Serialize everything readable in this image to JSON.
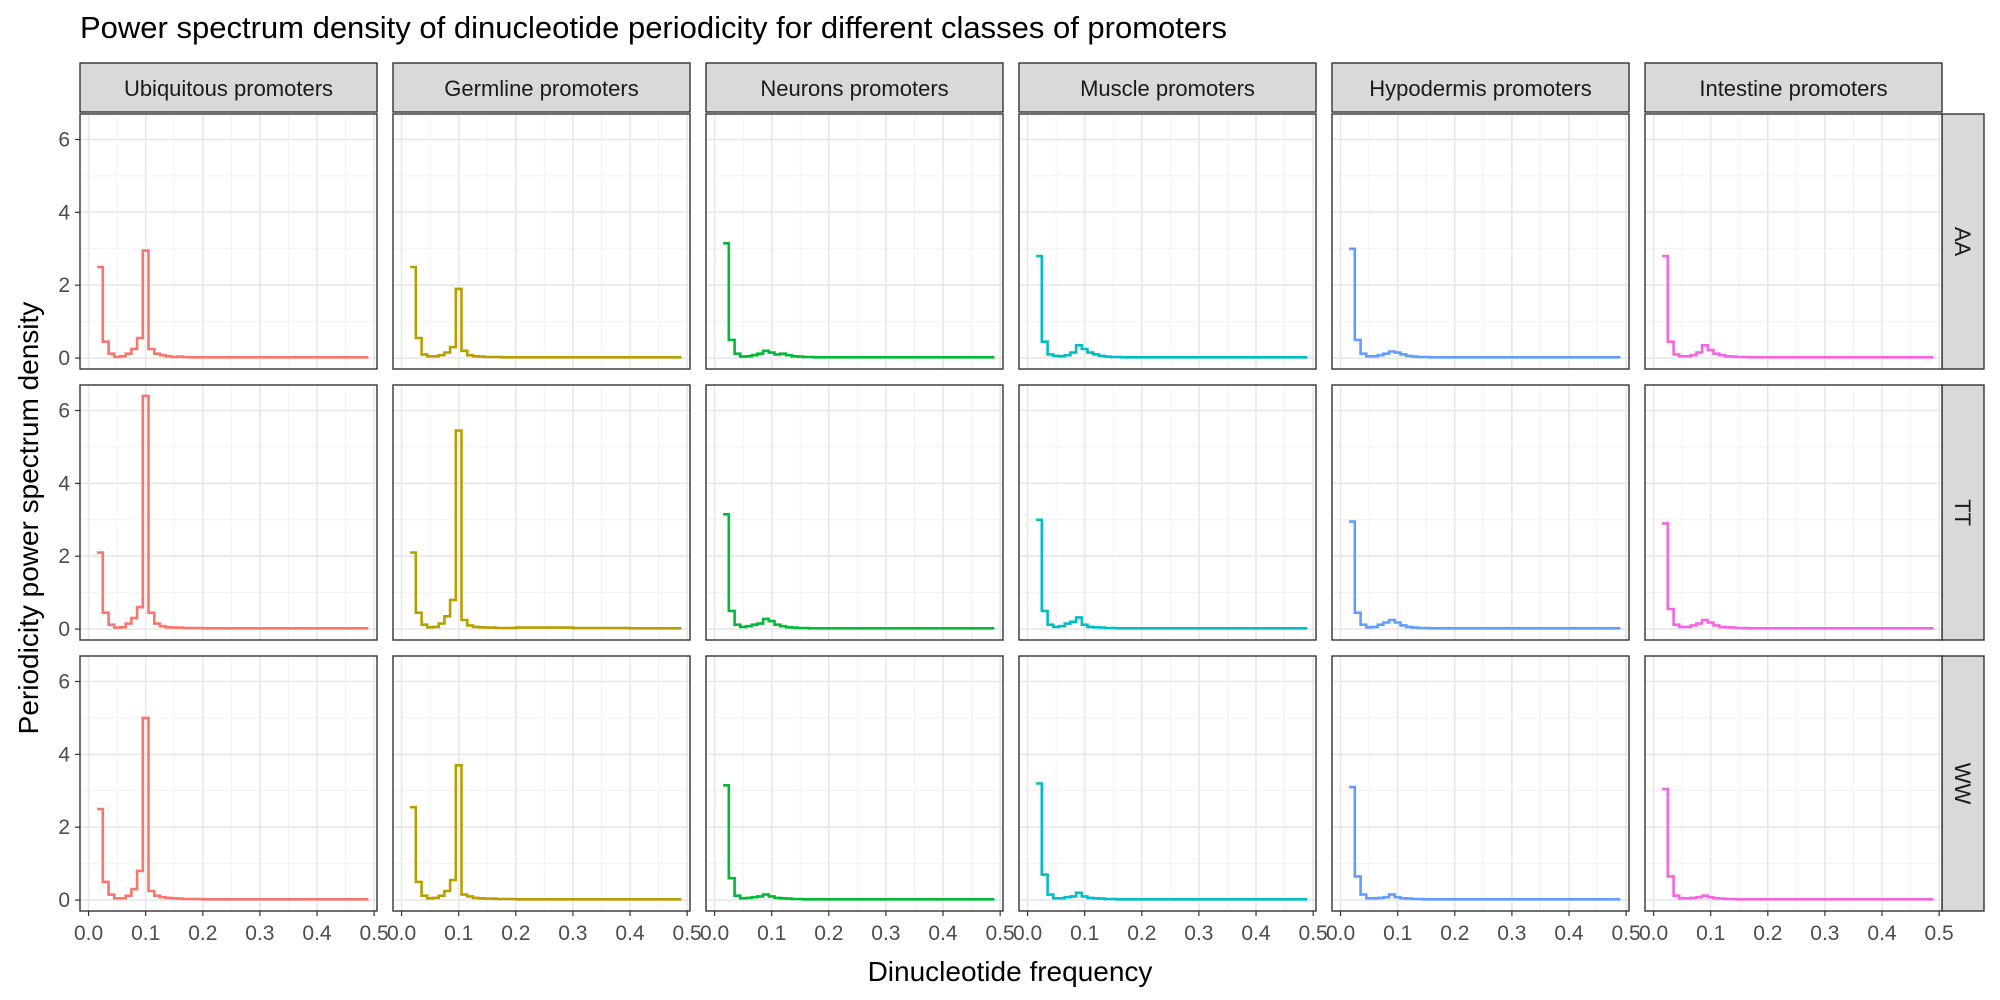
{
  "chart_data": {
    "type": "line",
    "title": "Power spectrum density of dinucleotide periodicity for different classes of promoters",
    "xlabel": "Dinucleotide frequency",
    "ylabel": "Periodicity power spectrum density",
    "columns": [
      "Ubiquitous promoters",
      "Germline promoters",
      "Neurons promoters",
      "Muscle promoters",
      "Hypodermis promoters",
      "Intestine promoters"
    ],
    "rows": [
      "AA",
      "TT",
      "WW"
    ],
    "xlim": [
      -0.015,
      0.505
    ],
    "ylim": [
      -0.3,
      6.7
    ],
    "x_ticks": [
      0.0,
      0.1,
      0.2,
      0.3,
      0.4,
      0.5
    ],
    "x_tick_labels": [
      "0.0",
      "0.1",
      "0.2",
      "0.3",
      "0.4",
      "0.5"
    ],
    "y_ticks": [
      0,
      2,
      4,
      6
    ],
    "y_tick_labels": [
      "0",
      "2",
      "4",
      "6"
    ],
    "grid": true,
    "step": true,
    "colors": [
      "#F8766D",
      "#B79F00",
      "#00BA38",
      "#00BFC4",
      "#619CFF",
      "#F564E3"
    ],
    "panels": [
      [
        {
          "x": [
            0.015,
            0.025,
            0.035,
            0.045,
            0.055,
            0.065,
            0.075,
            0.085,
            0.095,
            0.105,
            0.115,
            0.125,
            0.135,
            0.145,
            0.155,
            0.165,
            0.175,
            0.2,
            0.3,
            0.4,
            0.49
          ],
          "y": [
            2.5,
            0.45,
            0.12,
            0.03,
            0.05,
            0.12,
            0.25,
            0.55,
            2.95,
            0.25,
            0.12,
            0.08,
            0.05,
            0.03,
            0.04,
            0.03,
            0.02,
            0.02,
            0.02,
            0.02,
            0.02
          ]
        },
        {
          "x": [
            0.015,
            0.025,
            0.035,
            0.045,
            0.055,
            0.065,
            0.075,
            0.085,
            0.095,
            0.105,
            0.115,
            0.125,
            0.135,
            0.145,
            0.155,
            0.165,
            0.175,
            0.2,
            0.3,
            0.4,
            0.49
          ],
          "y": [
            2.5,
            0.55,
            0.1,
            0.05,
            0.05,
            0.08,
            0.15,
            0.3,
            1.9,
            0.2,
            0.08,
            0.05,
            0.04,
            0.03,
            0.03,
            0.03,
            0.02,
            0.02,
            0.02,
            0.02,
            0.02
          ]
        },
        {
          "x": [
            0.015,
            0.025,
            0.035,
            0.045,
            0.055,
            0.065,
            0.075,
            0.085,
            0.095,
            0.105,
            0.115,
            0.125,
            0.135,
            0.145,
            0.155,
            0.165,
            0.175,
            0.2,
            0.3,
            0.4,
            0.49
          ],
          "y": [
            3.15,
            0.5,
            0.12,
            0.04,
            0.05,
            0.08,
            0.12,
            0.2,
            0.15,
            0.1,
            0.12,
            0.08,
            0.05,
            0.04,
            0.03,
            0.03,
            0.02,
            0.02,
            0.02,
            0.02,
            0.02
          ]
        },
        {
          "x": [
            0.015,
            0.025,
            0.035,
            0.045,
            0.055,
            0.065,
            0.075,
            0.085,
            0.095,
            0.105,
            0.115,
            0.125,
            0.135,
            0.145,
            0.155,
            0.165,
            0.175,
            0.2,
            0.3,
            0.4,
            0.49
          ],
          "y": [
            2.8,
            0.45,
            0.1,
            0.06,
            0.05,
            0.08,
            0.15,
            0.35,
            0.25,
            0.15,
            0.1,
            0.06,
            0.04,
            0.03,
            0.03,
            0.02,
            0.02,
            0.02,
            0.02,
            0.02,
            0.02
          ]
        },
        {
          "x": [
            0.015,
            0.025,
            0.035,
            0.045,
            0.055,
            0.065,
            0.075,
            0.085,
            0.095,
            0.105,
            0.115,
            0.125,
            0.135,
            0.145,
            0.155,
            0.165,
            0.175,
            0.2,
            0.3,
            0.4,
            0.49
          ],
          "y": [
            3.0,
            0.5,
            0.12,
            0.05,
            0.05,
            0.08,
            0.12,
            0.18,
            0.15,
            0.1,
            0.06,
            0.04,
            0.03,
            0.03,
            0.02,
            0.02,
            0.02,
            0.02,
            0.02,
            0.02,
            0.02
          ]
        },
        {
          "x": [
            0.015,
            0.025,
            0.035,
            0.045,
            0.055,
            0.065,
            0.075,
            0.085,
            0.095,
            0.105,
            0.115,
            0.125,
            0.135,
            0.145,
            0.155,
            0.165,
            0.175,
            0.2,
            0.3,
            0.4,
            0.49
          ],
          "y": [
            2.8,
            0.45,
            0.1,
            0.05,
            0.05,
            0.08,
            0.15,
            0.35,
            0.22,
            0.12,
            0.08,
            0.05,
            0.04,
            0.03,
            0.03,
            0.02,
            0.02,
            0.02,
            0.02,
            0.02,
            0.02
          ]
        }
      ],
      [
        {
          "x": [
            0.015,
            0.025,
            0.035,
            0.045,
            0.055,
            0.065,
            0.075,
            0.085,
            0.095,
            0.105,
            0.115,
            0.125,
            0.135,
            0.145,
            0.155,
            0.165,
            0.175,
            0.2,
            0.3,
            0.4,
            0.49
          ],
          "y": [
            2.1,
            0.45,
            0.12,
            0.04,
            0.05,
            0.15,
            0.3,
            0.6,
            6.4,
            0.45,
            0.15,
            0.08,
            0.05,
            0.04,
            0.04,
            0.03,
            0.03,
            0.02,
            0.02,
            0.02,
            0.02
          ]
        },
        {
          "x": [
            0.015,
            0.025,
            0.035,
            0.045,
            0.055,
            0.065,
            0.075,
            0.085,
            0.095,
            0.105,
            0.115,
            0.125,
            0.135,
            0.145,
            0.155,
            0.165,
            0.175,
            0.2,
            0.3,
            0.4,
            0.49
          ],
          "y": [
            2.1,
            0.45,
            0.12,
            0.05,
            0.06,
            0.15,
            0.35,
            0.8,
            5.45,
            0.25,
            0.1,
            0.06,
            0.05,
            0.04,
            0.04,
            0.03,
            0.03,
            0.04,
            0.03,
            0.02,
            0.02
          ]
        },
        {
          "x": [
            0.015,
            0.025,
            0.035,
            0.045,
            0.055,
            0.065,
            0.075,
            0.085,
            0.095,
            0.105,
            0.115,
            0.125,
            0.135,
            0.145,
            0.155,
            0.165,
            0.175,
            0.2,
            0.3,
            0.4,
            0.49
          ],
          "y": [
            3.15,
            0.5,
            0.12,
            0.06,
            0.08,
            0.12,
            0.15,
            0.28,
            0.22,
            0.12,
            0.08,
            0.05,
            0.04,
            0.03,
            0.03,
            0.02,
            0.02,
            0.02,
            0.02,
            0.02,
            0.02
          ]
        },
        {
          "x": [
            0.015,
            0.025,
            0.035,
            0.045,
            0.055,
            0.065,
            0.075,
            0.085,
            0.095,
            0.105,
            0.115,
            0.125,
            0.135,
            0.145,
            0.155,
            0.165,
            0.175,
            0.2,
            0.3,
            0.4,
            0.49
          ],
          "y": [
            3.0,
            0.5,
            0.12,
            0.06,
            0.08,
            0.15,
            0.2,
            0.32,
            0.12,
            0.06,
            0.05,
            0.04,
            0.03,
            0.03,
            0.02,
            0.02,
            0.02,
            0.02,
            0.02,
            0.02,
            0.02
          ]
        },
        {
          "x": [
            0.015,
            0.025,
            0.035,
            0.045,
            0.055,
            0.065,
            0.075,
            0.085,
            0.095,
            0.105,
            0.115,
            0.125,
            0.135,
            0.145,
            0.155,
            0.165,
            0.175,
            0.2,
            0.3,
            0.4,
            0.49
          ],
          "y": [
            2.95,
            0.45,
            0.12,
            0.05,
            0.06,
            0.12,
            0.18,
            0.25,
            0.18,
            0.1,
            0.06,
            0.04,
            0.03,
            0.03,
            0.02,
            0.02,
            0.02,
            0.02,
            0.02,
            0.02,
            0.02
          ]
        },
        {
          "x": [
            0.015,
            0.025,
            0.035,
            0.045,
            0.055,
            0.065,
            0.075,
            0.085,
            0.095,
            0.105,
            0.115,
            0.125,
            0.135,
            0.145,
            0.155,
            0.165,
            0.175,
            0.2,
            0.3,
            0.4,
            0.49
          ],
          "y": [
            2.9,
            0.55,
            0.12,
            0.06,
            0.06,
            0.1,
            0.15,
            0.25,
            0.18,
            0.1,
            0.06,
            0.05,
            0.04,
            0.03,
            0.03,
            0.02,
            0.02,
            0.02,
            0.02,
            0.02,
            0.02
          ]
        }
      ],
      [
        {
          "x": [
            0.015,
            0.025,
            0.035,
            0.045,
            0.055,
            0.065,
            0.075,
            0.085,
            0.095,
            0.105,
            0.115,
            0.125,
            0.135,
            0.145,
            0.155,
            0.165,
            0.175,
            0.2,
            0.3,
            0.4,
            0.49
          ],
          "y": [
            2.5,
            0.5,
            0.15,
            0.05,
            0.05,
            0.12,
            0.3,
            0.8,
            5.0,
            0.25,
            0.12,
            0.08,
            0.06,
            0.05,
            0.04,
            0.03,
            0.03,
            0.02,
            0.02,
            0.02,
            0.02
          ]
        },
        {
          "x": [
            0.015,
            0.025,
            0.035,
            0.045,
            0.055,
            0.065,
            0.075,
            0.085,
            0.095,
            0.105,
            0.115,
            0.125,
            0.135,
            0.145,
            0.155,
            0.165,
            0.175,
            0.2,
            0.3,
            0.4,
            0.49
          ],
          "y": [
            2.55,
            0.5,
            0.12,
            0.05,
            0.06,
            0.12,
            0.25,
            0.55,
            3.7,
            0.15,
            0.1,
            0.06,
            0.05,
            0.04,
            0.04,
            0.03,
            0.03,
            0.02,
            0.02,
            0.02,
            0.02
          ]
        },
        {
          "x": [
            0.015,
            0.025,
            0.035,
            0.045,
            0.055,
            0.065,
            0.075,
            0.085,
            0.095,
            0.105,
            0.115,
            0.125,
            0.135,
            0.145,
            0.155,
            0.165,
            0.175,
            0.2,
            0.3,
            0.4,
            0.49
          ],
          "y": [
            3.15,
            0.6,
            0.12,
            0.05,
            0.06,
            0.08,
            0.1,
            0.15,
            0.1,
            0.06,
            0.05,
            0.04,
            0.03,
            0.03,
            0.02,
            0.02,
            0.02,
            0.02,
            0.02,
            0.02,
            0.02
          ]
        },
        {
          "x": [
            0.015,
            0.025,
            0.035,
            0.045,
            0.055,
            0.065,
            0.075,
            0.085,
            0.095,
            0.105,
            0.115,
            0.125,
            0.135,
            0.145,
            0.155,
            0.165,
            0.175,
            0.2,
            0.3,
            0.4,
            0.49
          ],
          "y": [
            3.2,
            0.7,
            0.15,
            0.05,
            0.05,
            0.08,
            0.1,
            0.2,
            0.1,
            0.06,
            0.05,
            0.04,
            0.03,
            0.03,
            0.02,
            0.02,
            0.02,
            0.02,
            0.02,
            0.02,
            0.02
          ]
        },
        {
          "x": [
            0.015,
            0.025,
            0.035,
            0.045,
            0.055,
            0.065,
            0.075,
            0.085,
            0.095,
            0.105,
            0.115,
            0.125,
            0.135,
            0.145,
            0.155,
            0.165,
            0.175,
            0.2,
            0.3,
            0.4,
            0.49
          ],
          "y": [
            3.1,
            0.65,
            0.15,
            0.05,
            0.05,
            0.06,
            0.08,
            0.15,
            0.08,
            0.05,
            0.04,
            0.03,
            0.03,
            0.02,
            0.02,
            0.02,
            0.02,
            0.02,
            0.02,
            0.02,
            0.02
          ]
        },
        {
          "x": [
            0.015,
            0.025,
            0.035,
            0.045,
            0.055,
            0.065,
            0.075,
            0.085,
            0.095,
            0.105,
            0.115,
            0.125,
            0.135,
            0.145,
            0.155,
            0.165,
            0.175,
            0.2,
            0.3,
            0.4,
            0.49
          ],
          "y": [
            3.05,
            0.65,
            0.12,
            0.05,
            0.05,
            0.06,
            0.08,
            0.12,
            0.08,
            0.05,
            0.04,
            0.03,
            0.03,
            0.02,
            0.02,
            0.02,
            0.02,
            0.02,
            0.02,
            0.02,
            0.02
          ]
        }
      ]
    ]
  }
}
